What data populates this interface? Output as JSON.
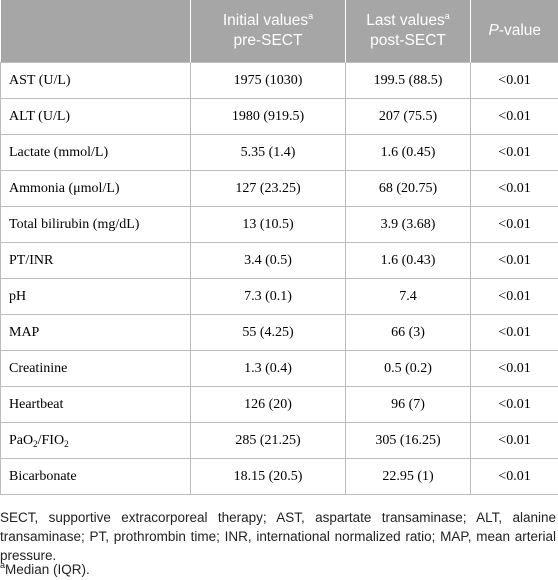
{
  "table": {
    "header": [
      {
        "text": ""
      },
      {
        "text": "Initial values",
        "sup": "a",
        "line2": "pre-SECT"
      },
      {
        "text": "Last values",
        "sup": "a",
        "line2": "post-SECT"
      },
      {
        "italic": "P",
        "text": "-value"
      }
    ],
    "rows": [
      [
        "AST (U/L)",
        "1975 (1030)",
        "199.5 (88.5)",
        "<0.01"
      ],
      [
        "ALT (U/L)",
        "1980 (919.5)",
        "207 (75.5)",
        "<0.01"
      ],
      [
        "Lactate (mmol/L)",
        "5.35 (1.4)",
        "1.6 (0.45)",
        "<0.01"
      ],
      [
        "Ammonia (μmol/L)",
        "127 (23.25)",
        "68 (20.75)",
        "<0.01"
      ],
      [
        "Total bilirubin (mg/dL)",
        "13 (10.5)",
        "3.9 (3.68)",
        "<0.01"
      ],
      [
        "PT/INR",
        "3.4 (0.5)",
        "1.6 (0.43)",
        "<0.01"
      ],
      [
        "pH",
        "7.3 (0.1)",
        "7.4",
        "<0.01"
      ],
      [
        "MAP",
        "55 (4.25)",
        "66 (3)",
        "<0.01"
      ],
      [
        "Creatinine",
        "1.3 (0.4)",
        "0.5 (0.2)",
        "<0.01"
      ],
      [
        "Heartbeat",
        "126 (20)",
        "96 (7)",
        "<0.01"
      ],
      [
        [
          "PaO",
          "2",
          "/FIO",
          "2"
        ],
        "285 (21.25)",
        "305 (16.25)",
        "<0.01"
      ],
      [
        "Bicarbonate",
        "18.15 (20.5)",
        "22.95 (1)",
        "<0.01"
      ]
    ]
  },
  "footnotes": {
    "abbreviations": "SECT, supportive extracorporeal therapy; AST, aspartate transaminase; ALT, alanine transaminase; PT, prothrombin time; INR, international normalized ratio; MAP, mean arterial pressure.",
    "marker": "a",
    "note": "Median (IQR)."
  }
}
